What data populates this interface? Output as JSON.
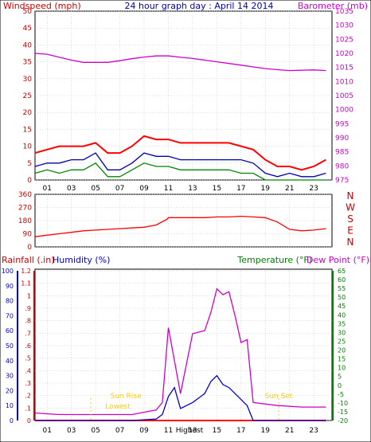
{
  "header": {
    "left_label": "Windspeed (mph)",
    "title": "24 hour graph day : April 14 2014",
    "right_label": "Barometer (mb)"
  },
  "colors": {
    "wind_avg": "#ff0000",
    "wind_gust": "#0000aa",
    "wind_dir": "#008800",
    "barometer": "#cc00cc",
    "rain": "#ff0000",
    "humidity": "#0000cc",
    "temperature": "#008000",
    "dewpoint": "#cc00cc",
    "sun": "#ffcc00"
  },
  "chart_data": [
    {
      "type": "line",
      "id": "wind-barometer",
      "title": "24 hour graph day : April 14 2014",
      "ylabel": "Windspeed (mph)",
      "y2label": "Barometer (mb)",
      "ylim": [
        0,
        50
      ],
      "y2lim": [
        975,
        1035
      ],
      "yticks": [
        0,
        5,
        10,
        15,
        20,
        25,
        30,
        35,
        40,
        45,
        50
      ],
      "y2ticks": [
        975,
        980,
        985,
        990,
        995,
        1000,
        1005,
        1010,
        1015,
        1020,
        1025,
        1030,
        1035
      ],
      "xlim": [
        0,
        24.5
      ],
      "xticks": [
        "01",
        "03",
        "05",
        "07",
        "09",
        "11",
        "13",
        "15",
        "17",
        "19",
        "21",
        "23"
      ],
      "series": [
        {
          "key": "wind_avg",
          "x": [
            0,
            1,
            2,
            3,
            4,
            5,
            6,
            7,
            8,
            9,
            10,
            11,
            12,
            13,
            14,
            15,
            16,
            17,
            18,
            19,
            20,
            21,
            22,
            23,
            24
          ],
          "y": [
            8,
            9,
            10,
            10,
            10,
            11,
            8,
            8,
            10,
            13,
            12,
            12,
            11,
            11,
            11,
            11,
            11,
            10,
            9,
            6,
            4,
            4,
            3,
            4,
            6
          ]
        },
        {
          "key": "wind_gust",
          "x": [
            0,
            1,
            2,
            3,
            4,
            5,
            6,
            7,
            8,
            9,
            10,
            11,
            12,
            13,
            14,
            15,
            16,
            17,
            18,
            19,
            20,
            21,
            22,
            23,
            24
          ],
          "y": [
            4,
            5,
            5,
            6,
            6,
            8,
            3,
            3,
            5,
            8,
            7,
            7,
            6,
            6,
            6,
            6,
            6,
            6,
            5,
            2,
            1,
            2,
            1,
            1,
            2
          ]
        },
        {
          "key": "wind_dir",
          "x": [
            0,
            1,
            2,
            3,
            4,
            5,
            6,
            7,
            8,
            9,
            10,
            11,
            12,
            13,
            14,
            15,
            16,
            17,
            18,
            19,
            20,
            21,
            22,
            23,
            24
          ],
          "y": [
            2,
            3,
            2,
            3,
            3,
            5,
            1,
            1,
            3,
            5,
            4,
            4,
            3,
            3,
            3,
            3,
            3,
            2,
            2,
            0,
            0,
            0,
            0,
            0,
            0
          ]
        },
        {
          "key": "barometer",
          "x": [
            0,
            1,
            2,
            3,
            4,
            5,
            6,
            7,
            8,
            9,
            10,
            11,
            12,
            13,
            14,
            15,
            16,
            17,
            18,
            19,
            20,
            21,
            22,
            23,
            24
          ],
          "y": [
            1020,
            1019.7,
            1018.6,
            1017.6,
            1016.8,
            1016.8,
            1016.8,
            1017.4,
            1018.1,
            1018.7,
            1019.1,
            1019.1,
            1018.6,
            1018.2,
            1017.6,
            1017.0,
            1016.4,
            1015.8,
            1015.2,
            1014.6,
            1014.2,
            1013.9,
            1014.0,
            1014.1,
            1013.9
          ]
        }
      ]
    },
    {
      "type": "line",
      "id": "wind-direction",
      "ylim": [
        0,
        360
      ],
      "yticks": [
        0,
        90,
        180,
        270,
        360
      ],
      "compass": [
        "N",
        "W",
        "S",
        "E",
        "N"
      ],
      "xlim": [
        0,
        24.5
      ],
      "series": [
        {
          "key": "wind_dir",
          "x": [
            0,
            1,
            2,
            3,
            4,
            5,
            6,
            7,
            8,
            9,
            10,
            10.9,
            11,
            12,
            13,
            14,
            15,
            16,
            17,
            18,
            19,
            20,
            21,
            22,
            23,
            24
          ],
          "y": [
            70,
            80,
            90,
            100,
            110,
            115,
            120,
            125,
            130,
            135,
            150,
            190,
            200,
            200,
            200,
            200,
            205,
            205,
            210,
            205,
            200,
            170,
            120,
            110,
            115,
            125
          ]
        }
      ]
    },
    {
      "type": "line",
      "id": "rain-humidity-temp",
      "y_rain_label": "Rainfall (.in)",
      "y_hum_label": "Humidity (%)",
      "y_temp_label": "Temperature (°F)",
      "y_dew_label": "Dew Point (°F)",
      "ylim_humidity": [
        0,
        100
      ],
      "ylim_rain": [
        0,
        1.2
      ],
      "ylim_temp": [
        -20,
        65
      ],
      "humidity_ticks": [
        0,
        10,
        20,
        30,
        40,
        50,
        60,
        70,
        80,
        90,
        100
      ],
      "rain_ticks": [
        "0",
        ".1",
        ".2",
        ".3",
        ".4",
        ".5",
        ".6",
        ".7",
        ".8",
        ".9",
        "1",
        "1.1",
        "1.2"
      ],
      "temp_ticks": [
        -20,
        -15,
        -10,
        -5,
        0,
        5,
        10,
        15,
        20,
        25,
        30,
        35,
        40,
        45,
        50,
        55,
        60,
        65
      ],
      "xlim": [
        0,
        24.5
      ],
      "xticks": [
        "01",
        "03",
        "05",
        "07",
        "09",
        "11",
        "13",
        "15",
        "17",
        "19",
        "21",
        "23"
      ],
      "annotations": {
        "sun_rise": "Sun Rise",
        "sun_set": "Sun Set",
        "lowest": "Lowest",
        "highest": "Highest"
      },
      "series": [
        {
          "key": "humidity",
          "x": [
            0,
            2,
            4,
            6,
            8,
            10,
            10.5,
            11,
            11.5,
            12,
            13,
            14,
            14.5,
            15,
            15.5,
            16,
            16.5,
            17,
            17.5,
            18,
            20,
            22,
            24
          ],
          "y": [
            0,
            0,
            0,
            0,
            0,
            1,
            4,
            16,
            22,
            8,
            12,
            18,
            26,
            30,
            24,
            22,
            18,
            14,
            10,
            0,
            0,
            0,
            0
          ]
        },
        {
          "key": "dewpoint",
          "x": [
            0,
            2,
            4,
            6,
            8,
            10,
            10.5,
            11,
            11.5,
            12,
            13,
            14,
            14.5,
            15,
            15.5,
            16,
            16.5,
            17,
            17.5,
            18,
            20,
            22,
            24
          ],
          "y": [
            5,
            4,
            4,
            4,
            4,
            7,
            12,
            62,
            40,
            18,
            58,
            60,
            72,
            88,
            84,
            86,
            70,
            52,
            54,
            12,
            10,
            9,
            9
          ]
        },
        {
          "key": "temperature",
          "x": [
            0,
            24
          ],
          "y": [
            0,
            0
          ]
        }
      ]
    }
  ]
}
